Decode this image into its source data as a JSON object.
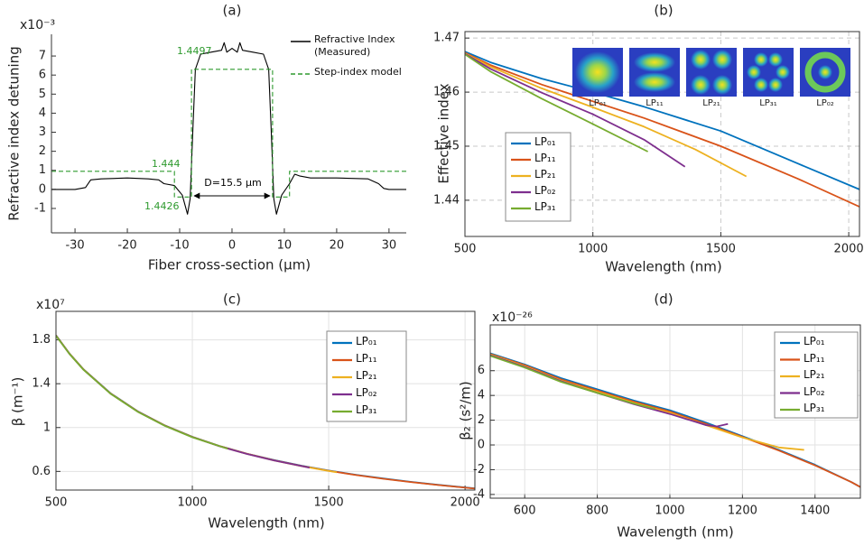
{
  "chart_data": [
    {
      "type": "line",
      "title": "(a)",
      "x_label": "Fiber cross-section (µm)",
      "y_label": "Refractive index detuning",
      "multiplier": "x10⁻³",
      "xlim": [
        -34.5,
        33.3
      ],
      "ylim": [
        -2.28,
        8.14
      ],
      "xticks": [
        -30,
        -20,
        -10,
        0,
        10,
        20,
        30
      ],
      "yticks": [
        -1,
        0,
        1,
        2,
        3,
        4,
        5,
        6,
        7
      ],
      "grid": false,
      "legend": "upper right",
      "annotations": [
        "1.4497",
        "1.444",
        "1.4426",
        "D=15.5 µm"
      ],
      "series": [
        {
          "name": "Refractive Index (Measured)",
          "color": "#000000",
          "x": [
            -34.5,
            -30,
            -28,
            -27,
            -25,
            -20,
            -16,
            -14,
            -13,
            -11,
            -9.5,
            -8.5,
            -8,
            -7.5,
            -7,
            -6,
            -4,
            -2,
            -1.5,
            -1,
            0,
            1,
            1.5,
            2,
            4,
            6,
            7,
            7.5,
            8,
            8.5,
            9.5,
            11,
            12,
            13,
            15,
            20,
            26,
            28,
            29,
            30,
            33.3
          ],
          "values": [
            0,
            0,
            0.1,
            0.5,
            0.55,
            0.6,
            0.55,
            0.5,
            0.3,
            0.2,
            -0.3,
            -1.3,
            -0.5,
            3,
            6.3,
            7.1,
            7.2,
            7.3,
            7.7,
            7.2,
            7.4,
            7.2,
            7.7,
            7.3,
            7.2,
            7.1,
            6.3,
            3,
            -0.5,
            -1.3,
            -0.3,
            0.3,
            0.8,
            0.7,
            0.6,
            0.6,
            0.55,
            0.3,
            0.05,
            0,
            0
          ]
        },
        {
          "name": "Step-index model",
          "color": "#2e9a2e",
          "linestyle": "dashed",
          "x": [
            -34.5,
            -11,
            -11,
            -7.75,
            -7.75,
            7.75,
            7.75,
            11,
            11,
            33.3
          ],
          "values": [
            0.95,
            0.95,
            -0.4,
            -0.4,
            6.3,
            6.3,
            -0.4,
            -0.4,
            0.95,
            0.95
          ]
        }
      ]
    },
    {
      "type": "line",
      "title": "(b)",
      "x_label": "Wavelength (nm)",
      "y_label": "Effective index",
      "xlim": [
        500,
        2042
      ],
      "ylim": [
        1.4333,
        1.4712
      ],
      "xticks": [
        500,
        1000,
        1500,
        2000
      ],
      "yticks": [
        1.44,
        1.45,
        1.46,
        1.47
      ],
      "grid": "dashed",
      "legend": "lower left",
      "mode_labels": [
        "LP₀₁",
        "LP₁₁",
        "LP₂₁",
        "LP₃₁",
        "LP₀₂"
      ],
      "series": [
        {
          "name": "LP₀₁",
          "color": "#0072bd",
          "x": [
            500,
            600,
            800,
            1000,
            1200,
            1500,
            1800,
            2042
          ],
          "values": [
            1.4675,
            1.4655,
            1.4625,
            1.46,
            1.4573,
            1.4528,
            1.4468,
            1.442
          ]
        },
        {
          "name": "LP₁₁",
          "color": "#d95319",
          "x": [
            500,
            600,
            800,
            1000,
            1200,
            1500,
            1800,
            2042
          ],
          "values": [
            1.4673,
            1.465,
            1.4614,
            1.4583,
            1.4552,
            1.45,
            1.444,
            1.4388
          ]
        },
        {
          "name": "LP₂₁",
          "color": "#edb120",
          "x": [
            500,
            600,
            800,
            1000,
            1200,
            1400,
            1600
          ],
          "values": [
            1.4672,
            1.4647,
            1.4607,
            1.4572,
            1.4536,
            1.4494,
            1.4444
          ]
        },
        {
          "name": "LP₀₂",
          "color": "#7e2f8e",
          "x": [
            500,
            600,
            800,
            1000,
            1200,
            1360
          ],
          "values": [
            1.4671,
            1.4643,
            1.4599,
            1.4559,
            1.4512,
            1.4462
          ]
        },
        {
          "name": "LP₃₁",
          "color": "#77ac30",
          "x": [
            500,
            600,
            800,
            1000,
            1215
          ],
          "values": [
            1.467,
            1.4638,
            1.4588,
            1.4541,
            1.449
          ]
        }
      ]
    },
    {
      "type": "line",
      "title": "(c)",
      "x_label": "Wavelength (nm)",
      "y_label": "β (m⁻¹)",
      "multiplier": "x10⁷",
      "xlim": [
        500,
        2036
      ],
      "ylim": [
        0.43,
        2.06
      ],
      "xticks": [
        500,
        1000,
        1500,
        2000
      ],
      "yticks": [
        0.6,
        1,
        1.4,
        1.8
      ],
      "grid": "solid",
      "legend": "upper right",
      "series": [
        {
          "name": "LP₀₁",
          "color": "#0072bd",
          "x": [
            500,
            550,
            600,
            700,
            800,
            900,
            1000,
            1100,
            1200,
            1300,
            1400,
            1500,
            1600,
            1700,
            1800,
            1900,
            2036
          ],
          "values": [
            1.842,
            1.674,
            1.534,
            1.313,
            1.148,
            1.019,
            0.916,
            0.832,
            0.762,
            0.703,
            0.652,
            0.608,
            0.569,
            0.535,
            0.505,
            0.478,
            0.445
          ]
        },
        {
          "name": "LP₁₁",
          "color": "#d95319",
          "x": [
            500,
            550,
            600,
            700,
            800,
            900,
            1000,
            1100,
            1200,
            1300,
            1400,
            1500,
            1600,
            1700,
            1800,
            1900,
            2036
          ],
          "values": [
            1.841,
            1.673,
            1.533,
            1.312,
            1.147,
            1.018,
            0.915,
            0.831,
            0.761,
            0.702,
            0.65,
            0.606,
            0.567,
            0.533,
            0.503,
            0.476,
            0.443
          ]
        },
        {
          "name": "LP₂₁",
          "color": "#edb120",
          "x": [
            500,
            550,
            600,
            700,
            800,
            900,
            1000,
            1100,
            1200,
            1300,
            1400,
            1500,
            1530
          ],
          "values": [
            1.84,
            1.672,
            1.532,
            1.311,
            1.146,
            1.017,
            0.914,
            0.83,
            0.76,
            0.7,
            0.648,
            0.604,
            0.592
          ]
        },
        {
          "name": "LP₀₂",
          "color": "#7e2f8e",
          "x": [
            500,
            550,
            600,
            700,
            800,
            900,
            1000,
            1100,
            1200,
            1300,
            1430
          ],
          "values": [
            1.839,
            1.671,
            1.531,
            1.31,
            1.145,
            1.016,
            0.913,
            0.829,
            0.759,
            0.699,
            0.634
          ]
        },
        {
          "name": "LP₃₁",
          "color": "#77ac30",
          "x": [
            500,
            550,
            600,
            700,
            800,
            900,
            1000,
            1130
          ],
          "values": [
            1.838,
            1.67,
            1.53,
            1.309,
            1.144,
            1.015,
            0.912,
            0.806
          ]
        }
      ]
    },
    {
      "type": "line",
      "title": "(d)",
      "x_label": "Wavelength (nm)",
      "y_label": "β₂ (s²/m)",
      "multiplier": "x10⁻²⁶",
      "xlim": [
        505,
        1525
      ],
      "ylim": [
        -4.3,
        9.7
      ],
      "xticks": [
        600,
        800,
        1000,
        1200,
        1400
      ],
      "yticks": [
        -4,
        -2,
        0,
        2,
        4,
        6
      ],
      "grid": "solid",
      "legend": "upper right",
      "series": [
        {
          "name": "LP₀₁",
          "color": "#0072bd",
          "x": [
            505,
            600,
            700,
            800,
            900,
            1000,
            1100,
            1200,
            1300,
            1400,
            1500,
            1525
          ],
          "values": [
            7.4,
            6.5,
            5.4,
            4.5,
            3.6,
            2.8,
            1.8,
            0.7,
            -0.4,
            -1.6,
            -3,
            -3.4
          ]
        },
        {
          "name": "LP₁₁",
          "color": "#d95319",
          "x": [
            505,
            600,
            700,
            800,
            900,
            1000,
            1100,
            1200,
            1300,
            1400,
            1500,
            1525
          ],
          "values": [
            7.35,
            6.45,
            5.3,
            4.4,
            3.5,
            2.7,
            1.7,
            0.65,
            -0.45,
            -1.65,
            -3,
            -3.4
          ]
        },
        {
          "name": "LP₂₁",
          "color": "#edb120",
          "x": [
            505,
            600,
            700,
            800,
            900,
            1000,
            1100,
            1200,
            1300,
            1370
          ],
          "values": [
            7.3,
            6.35,
            5.2,
            4.3,
            3.4,
            2.6,
            1.6,
            0.6,
            -0.2,
            -0.4
          ]
        },
        {
          "name": "LP₀₂",
          "color": "#7e2f8e",
          "x": [
            505,
            600,
            700,
            800,
            900,
            1000,
            1100,
            1130,
            1160
          ],
          "values": [
            7.25,
            6.3,
            5.15,
            4.2,
            3.3,
            2.5,
            1.6,
            1.5,
            1.7
          ]
        },
        {
          "name": "LP₃₁",
          "color": "#77ac30",
          "x": [
            505,
            600,
            700,
            800,
            900,
            960
          ],
          "values": [
            7.2,
            6.25,
            5.1,
            4.2,
            3.35,
            2.9
          ]
        }
      ]
    }
  ]
}
